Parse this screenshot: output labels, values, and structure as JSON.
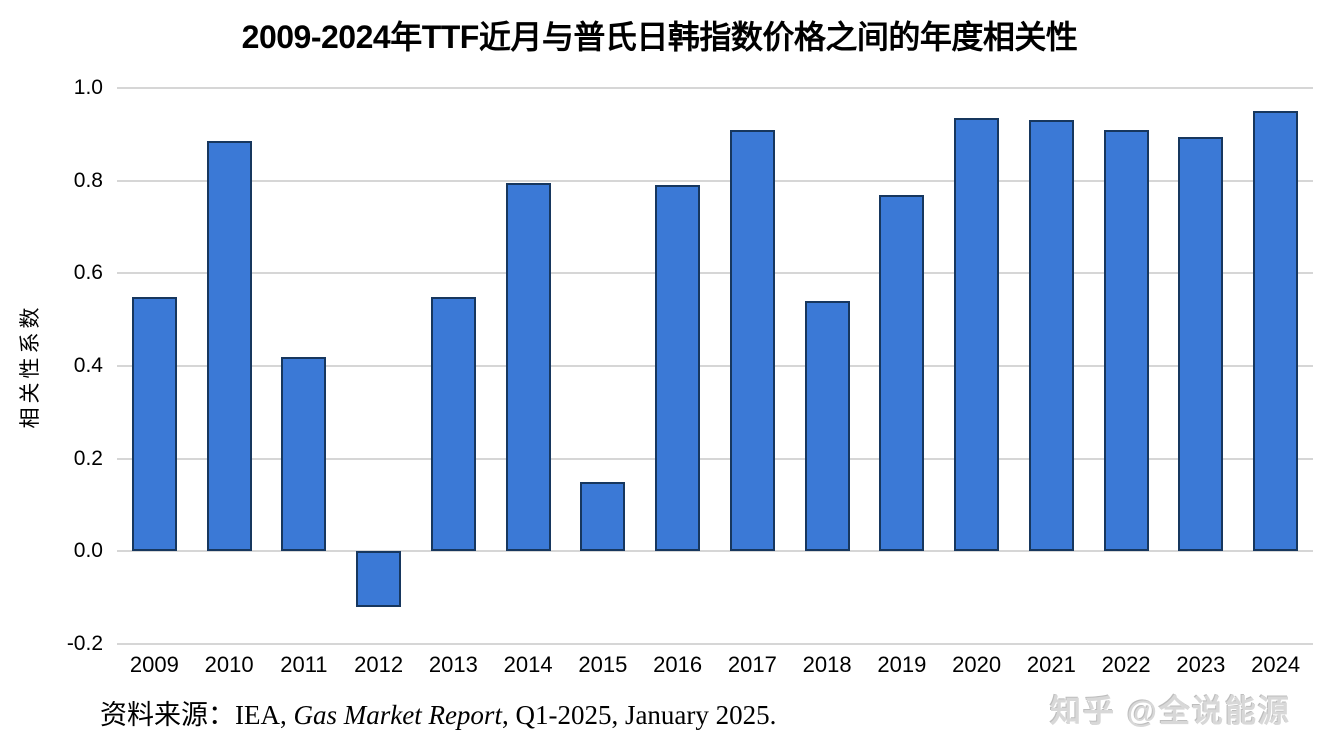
{
  "page": {
    "background": "#FFFFFF"
  },
  "chart_data": {
    "type": "bar",
    "title": "2009-2024年TTF近月与普氏日韩指数价格之间的年度相关性",
    "ylabel": "相关性系数",
    "xlabel": "",
    "categories": [
      "2009",
      "2010",
      "2011",
      "2012",
      "2013",
      "2014",
      "2015",
      "2016",
      "2017",
      "2018",
      "2019",
      "2020",
      "2021",
      "2022",
      "2023",
      "2024"
    ],
    "values": [
      0.55,
      0.885,
      0.42,
      -0.12,
      0.55,
      0.795,
      0.15,
      0.79,
      0.91,
      0.54,
      0.77,
      0.935,
      0.93,
      0.91,
      0.895,
      0.95
    ],
    "ylim": [
      -0.2,
      1.0
    ],
    "yticks": [
      1.0,
      0.8,
      0.6,
      0.4,
      0.2,
      0.0,
      -0.2
    ],
    "grid": true,
    "legend_position": "none",
    "colors": {
      "bar_fill": "#3B79D6",
      "bar_border": "#17375E",
      "gridline": "#D6D6D6",
      "axis_text": "#000000"
    }
  },
  "source": {
    "prefix": "资料来源：IEA, ",
    "italic": "Gas Market Report",
    "suffix": ", Q1-2025, January 2025."
  },
  "watermark": {
    "text": "知乎 @全说能源",
    "color": "#D8D8D8"
  }
}
